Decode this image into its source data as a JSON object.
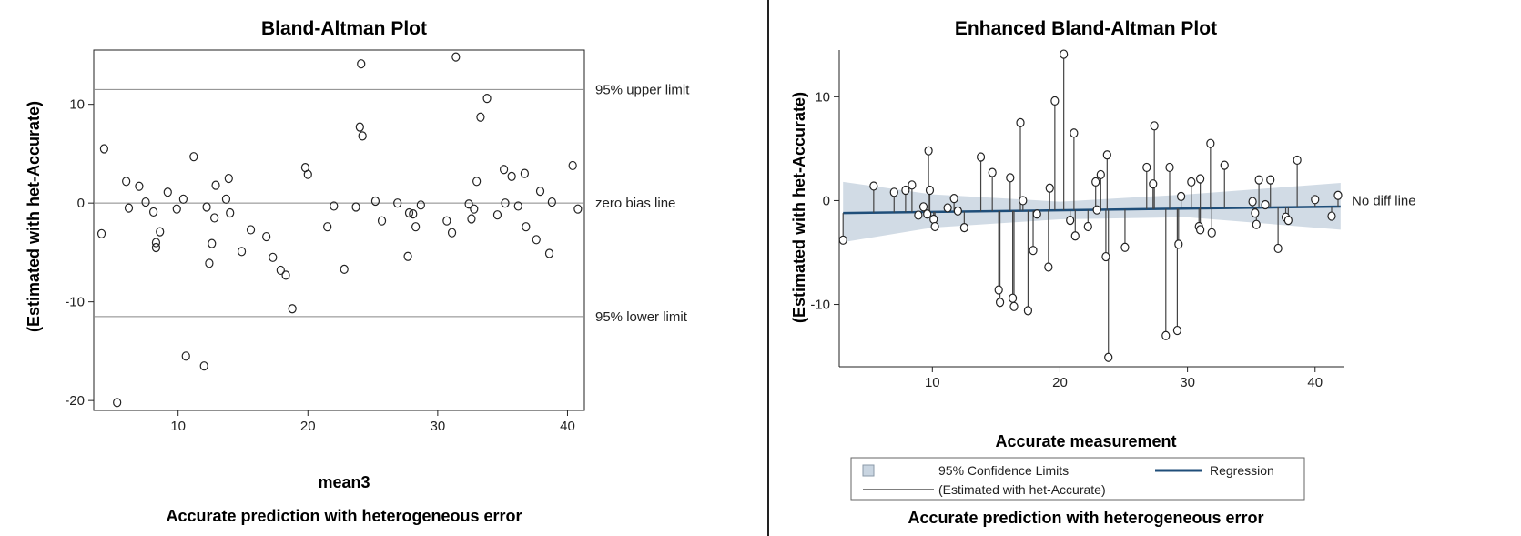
{
  "chart_data": [
    {
      "type": "scatter",
      "title": "Bland-Altman Plot",
      "xlabel": "mean3",
      "ylabel": "(Estimated with het-Accurate)",
      "subtitle": "Accurate prediction with heterogeneous error",
      "xlim": [
        3.5,
        41.3
      ],
      "ylim": [
        -21,
        15.5
      ],
      "xticks": [
        10,
        20,
        30,
        40
      ],
      "yticks": [
        -20,
        -10,
        0,
        10
      ],
      "reference_lines": [
        {
          "y": 11.5,
          "label": "95% upper limit"
        },
        {
          "y": 0,
          "label": "zero bias line"
        },
        {
          "y": -11.5,
          "label": "95% lower limit"
        }
      ],
      "points": [
        [
          4.1,
          -3.1
        ],
        [
          4.3,
          5.5
        ],
        [
          5.3,
          -20.2
        ],
        [
          6.0,
          2.2
        ],
        [
          6.2,
          -0.5
        ],
        [
          7.0,
          1.7
        ],
        [
          7.5,
          0.1
        ],
        [
          8.1,
          -0.9
        ],
        [
          8.3,
          -4.5
        ],
        [
          8.3,
          -4.0
        ],
        [
          8.6,
          -2.9
        ],
        [
          9.2,
          1.1
        ],
        [
          9.9,
          -0.6
        ],
        [
          10.4,
          0.4
        ],
        [
          10.6,
          -15.5
        ],
        [
          11.2,
          4.7
        ],
        [
          12.0,
          -16.5
        ],
        [
          12.2,
          -0.4
        ],
        [
          12.4,
          -6.1
        ],
        [
          12.6,
          -4.1
        ],
        [
          12.8,
          -1.5
        ],
        [
          12.9,
          1.8
        ],
        [
          13.7,
          0.4
        ],
        [
          13.9,
          2.5
        ],
        [
          14.0,
          -1.0
        ],
        [
          14.9,
          -4.9
        ],
        [
          15.6,
          -2.7
        ],
        [
          16.8,
          -3.4
        ],
        [
          17.3,
          -5.5
        ],
        [
          17.9,
          -6.8
        ],
        [
          18.3,
          -7.3
        ],
        [
          18.8,
          -10.7
        ],
        [
          19.8,
          3.6
        ],
        [
          20.0,
          2.9
        ],
        [
          21.5,
          -2.4
        ],
        [
          22.0,
          -0.3
        ],
        [
          22.8,
          -6.7
        ],
        [
          23.7,
          -0.4
        ],
        [
          24.0,
          7.7
        ],
        [
          24.1,
          14.1
        ],
        [
          24.2,
          6.8
        ],
        [
          25.2,
          0.2
        ],
        [
          25.7,
          -1.8
        ],
        [
          26.9,
          0.0
        ],
        [
          27.7,
          -5.4
        ],
        [
          27.8,
          -1.0
        ],
        [
          28.1,
          -1.1
        ],
        [
          28.3,
          -2.4
        ],
        [
          28.7,
          -0.2
        ],
        [
          30.7,
          -1.8
        ],
        [
          31.1,
          -3.0
        ],
        [
          31.4,
          14.8
        ],
        [
          32.4,
          -0.1
        ],
        [
          32.6,
          -1.6
        ],
        [
          32.8,
          -0.6
        ],
        [
          33.0,
          2.2
        ],
        [
          33.3,
          8.7
        ],
        [
          33.8,
          10.6
        ],
        [
          34.6,
          -1.2
        ],
        [
          35.1,
          3.4
        ],
        [
          35.2,
          0.0
        ],
        [
          35.7,
          2.7
        ],
        [
          36.2,
          -0.3
        ],
        [
          36.7,
          3.0
        ],
        [
          36.8,
          -2.4
        ],
        [
          37.6,
          -3.7
        ],
        [
          37.9,
          1.2
        ],
        [
          38.6,
          -5.1
        ],
        [
          38.8,
          0.1
        ],
        [
          40.4,
          3.8
        ],
        [
          40.8,
          -0.6
        ]
      ]
    },
    {
      "type": "scatter",
      "title": "Enhanced Bland-Altman Plot",
      "xlabel": "Accurate measurement",
      "ylabel": "(Estimated with het-Accurate)",
      "subtitle": "Accurate prediction with heterogeneous error",
      "xlim": [
        2.7,
        42.3
      ],
      "ylim": [
        -16,
        14.5
      ],
      "xticks": [
        10,
        20,
        30,
        40
      ],
      "yticks": [
        -10,
        0,
        10
      ],
      "reference_line_label": "No diff line",
      "regression": {
        "intercept": -1.25,
        "slope": 0.016
      },
      "confidence_band": {
        "x": [
          3,
          10,
          20,
          30,
          42
        ],
        "upper": [
          1.8,
          0.6,
          -0.1,
          0.6,
          1.7
        ],
        "lower": [
          -4.0,
          -2.6,
          -1.8,
          -1.6,
          -2.8
        ]
      },
      "legend": {
        "entries": [
          "95% Confidence Limits",
          "Regression",
          "(Estimated with het-Accurate)"
        ],
        "colors": [
          "#c9d5e1",
          "#1f4e79",
          "#555555"
        ]
      },
      "points": [
        [
          3.0,
          -3.8
        ],
        [
          5.4,
          1.4
        ],
        [
          7.0,
          0.8
        ],
        [
          7.9,
          1.0
        ],
        [
          8.4,
          1.5
        ],
        [
          8.9,
          -1.4
        ],
        [
          9.3,
          -0.6
        ],
        [
          9.6,
          -1.3
        ],
        [
          9.7,
          4.8
        ],
        [
          9.8,
          1.0
        ],
        [
          10.1,
          -1.8
        ],
        [
          10.2,
          -2.5
        ],
        [
          11.2,
          -0.7
        ],
        [
          11.7,
          0.2
        ],
        [
          12.0,
          -1.0
        ],
        [
          12.5,
          -2.6
        ],
        [
          13.8,
          4.2
        ],
        [
          14.7,
          2.7
        ],
        [
          15.2,
          -8.6
        ],
        [
          15.3,
          -9.8
        ],
        [
          16.1,
          2.2
        ],
        [
          16.3,
          -9.4
        ],
        [
          16.4,
          -10.2
        ],
        [
          16.9,
          7.5
        ],
        [
          17.1,
          0.0
        ],
        [
          17.5,
          -10.6
        ],
        [
          17.9,
          -4.8
        ],
        [
          18.2,
          -1.3
        ],
        [
          19.1,
          -6.4
        ],
        [
          19.2,
          1.2
        ],
        [
          19.6,
          9.6
        ],
        [
          20.3,
          14.1
        ],
        [
          20.8,
          -1.9
        ],
        [
          21.1,
          6.5
        ],
        [
          21.2,
          -3.4
        ],
        [
          22.2,
          -2.5
        ],
        [
          22.9,
          -0.9
        ],
        [
          22.8,
          1.8
        ],
        [
          23.2,
          2.5
        ],
        [
          23.6,
          -5.4
        ],
        [
          23.7,
          4.4
        ],
        [
          23.8,
          -15.1
        ],
        [
          25.1,
          -4.5
        ],
        [
          26.8,
          3.2
        ],
        [
          27.3,
          1.6
        ],
        [
          27.4,
          7.2
        ],
        [
          28.3,
          -13.0
        ],
        [
          28.6,
          3.2
        ],
        [
          29.2,
          -12.5
        ],
        [
          29.3,
          -4.2
        ],
        [
          29.5,
          0.4
        ],
        [
          30.3,
          1.8
        ],
        [
          30.9,
          -2.5
        ],
        [
          31.0,
          -2.8
        ],
        [
          31.0,
          2.1
        ],
        [
          31.8,
          5.5
        ],
        [
          31.9,
          -3.1
        ],
        [
          32.9,
          3.4
        ],
        [
          35.1,
          -0.1
        ],
        [
          35.3,
          -1.2
        ],
        [
          35.4,
          -2.3
        ],
        [
          35.6,
          2.0
        ],
        [
          36.1,
          -0.4
        ],
        [
          36.5,
          2.0
        ],
        [
          37.1,
          -4.6
        ],
        [
          37.7,
          -1.6
        ],
        [
          37.9,
          -1.9
        ],
        [
          38.6,
          3.9
        ],
        [
          40.0,
          0.1
        ],
        [
          41.3,
          -1.5
        ],
        [
          41.8,
          0.5
        ]
      ]
    }
  ]
}
